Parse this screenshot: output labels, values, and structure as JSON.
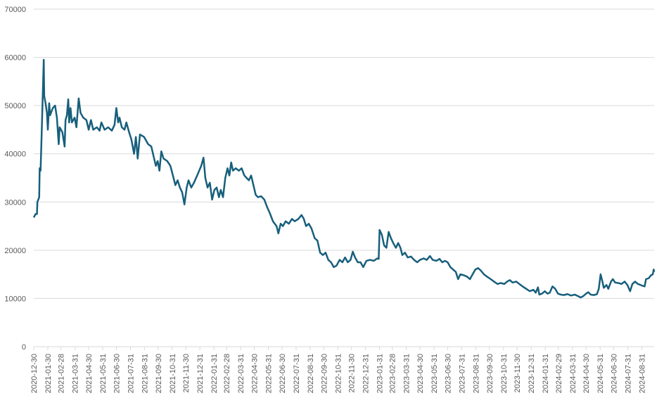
{
  "chart_data": {
    "type": "line",
    "color": "#175f7c",
    "grid": true,
    "x": [
      "2020-12-30",
      "2021-01-03",
      "2021-01-06",
      "2021-01-07",
      "2021-01-11",
      "2021-01-12",
      "2021-01-14",
      "2021-01-17",
      "2021-01-21",
      "2021-01-22",
      "2021-01-25",
      "2021-01-28",
      "2021-01-30",
      "2021-02-02",
      "2021-02-04",
      "2021-02-10",
      "2021-02-15",
      "2021-02-19",
      "2021-02-23",
      "2021-02-25",
      "2021-03-03",
      "2021-03-08",
      "2021-03-10",
      "2021-03-13",
      "2021-03-16",
      "2021-03-18",
      "2021-03-21",
      "2021-03-24",
      "2021-03-30",
      "2021-04-03",
      "2021-04-08",
      "2021-04-12",
      "2021-04-18",
      "2021-04-25",
      "2021-04-30",
      "2021-05-05",
      "2021-05-10",
      "2021-05-18",
      "2021-05-24",
      "2021-05-28",
      "2021-06-04",
      "2021-06-12",
      "2021-06-20",
      "2021-06-26",
      "2021-06-30",
      "2021-07-04",
      "2021-07-07",
      "2021-07-12",
      "2021-07-18",
      "2021-07-22",
      "2021-07-28",
      "2021-08-02",
      "2021-08-08",
      "2021-08-12",
      "2021-08-16",
      "2021-08-21",
      "2021-08-30",
      "2021-09-08",
      "2021-09-15",
      "2021-09-20",
      "2021-09-25",
      "2021-09-29",
      "2021-10-03",
      "2021-10-07",
      "2021-10-12",
      "2021-10-20",
      "2021-10-27",
      "2021-11-03",
      "2021-11-07",
      "2021-11-12",
      "2021-11-17",
      "2021-11-22",
      "2021-11-27",
      "2021-12-02",
      "2021-12-06",
      "2021-12-12",
      "2021-12-18",
      "2021-12-25",
      "2022-01-03",
      "2022-01-08",
      "2022-01-12",
      "2022-01-17",
      "2022-01-22",
      "2022-01-27",
      "2022-02-01",
      "2022-02-06",
      "2022-02-11",
      "2022-02-15",
      "2022-02-20",
      "2022-02-25",
      "2022-03-02",
      "2022-03-06",
      "2022-03-10",
      "2022-03-14",
      "2022-03-20",
      "2022-03-27",
      "2022-04-02",
      "2022-04-08",
      "2022-04-13",
      "2022-04-18",
      "2022-04-23",
      "2022-04-28",
      "2022-05-03",
      "2022-05-08",
      "2022-05-15",
      "2022-05-22",
      "2022-05-28",
      "2022-06-04",
      "2022-06-10",
      "2022-06-18",
      "2022-06-22",
      "2022-06-27",
      "2022-07-02",
      "2022-07-08",
      "2022-07-15",
      "2022-07-22",
      "2022-07-28",
      "2022-08-05",
      "2022-08-12",
      "2022-08-17",
      "2022-08-22",
      "2022-08-28",
      "2022-09-03",
      "2022-09-10",
      "2022-09-16",
      "2022-09-22",
      "2022-09-28",
      "2022-10-04",
      "2022-10-10",
      "2022-10-16",
      "2022-10-22",
      "2022-10-28",
      "2022-11-04",
      "2022-11-10",
      "2022-11-16",
      "2022-11-22",
      "2022-11-28",
      "2022-12-03",
      "2022-12-08",
      "2022-12-14",
      "2022-12-20",
      "2022-12-26",
      "2023-01-02",
      "2023-01-10",
      "2023-01-18",
      "2023-01-26",
      "2023-01-29",
      "2023-01-31",
      "2023-02-05",
      "2023-02-10",
      "2023-02-15",
      "2023-02-20",
      "2023-02-25",
      "2023-03-02",
      "2023-03-08",
      "2023-03-13",
      "2023-03-18",
      "2023-03-22",
      "2023-03-28",
      "2023-04-03",
      "2023-04-10",
      "2023-04-17",
      "2023-04-24",
      "2023-04-30",
      "2023-05-08",
      "2023-05-15",
      "2023-05-22",
      "2023-05-28",
      "2023-06-05",
      "2023-06-12",
      "2023-06-18",
      "2023-06-24",
      "2023-06-30",
      "2023-07-06",
      "2023-07-12",
      "2023-07-18",
      "2023-07-23",
      "2023-07-28",
      "2023-08-05",
      "2023-08-12",
      "2023-08-18",
      "2023-08-24",
      "2023-08-30",
      "2023-09-05",
      "2023-09-11",
      "2023-09-18",
      "2023-09-25",
      "2023-10-03",
      "2023-10-10",
      "2023-10-18",
      "2023-10-25",
      "2023-11-02",
      "2023-11-08",
      "2023-11-14",
      "2023-11-20",
      "2023-11-28",
      "2023-12-05",
      "2023-12-12",
      "2023-12-20",
      "2023-12-28",
      "2024-01-05",
      "2024-01-10",
      "2024-01-15",
      "2024-01-18",
      "2024-01-24",
      "2024-01-30",
      "2024-02-05",
      "2024-02-10",
      "2024-02-16",
      "2024-02-22",
      "2024-02-28",
      "2024-03-05",
      "2024-03-12",
      "2024-03-20",
      "2024-03-28",
      "2024-04-05",
      "2024-04-12",
      "2024-04-18",
      "2024-04-24",
      "2024-04-30",
      "2024-05-05",
      "2024-05-10",
      "2024-05-17",
      "2024-05-24",
      "2024-05-28",
      "2024-06-01",
      "2024-06-05",
      "2024-06-08",
      "2024-06-14",
      "2024-06-18",
      "2024-06-24",
      "2024-06-28",
      "2024-07-03",
      "2024-07-10",
      "2024-07-17",
      "2024-07-24",
      "2024-07-30",
      "2024-08-05",
      "2024-08-10",
      "2024-08-16",
      "2024-08-22",
      "2024-08-28",
      "2024-09-02",
      "2024-09-06",
      "2024-09-09",
      "2024-09-15",
      "2024-09-20",
      "2024-09-24",
      "2024-09-26",
      "2024-09-27"
    ],
    "values": [
      26800,
      27500,
      27500,
      30000,
      31000,
      37000,
      36500,
      46000,
      59500,
      52000,
      50500,
      48500,
      45000,
      50500,
      48000,
      49500,
      50000,
      47500,
      42000,
      45500,
      44500,
      41500,
      47000,
      48000,
      51300,
      46500,
      49500,
      46500,
      47500,
      45500,
      51500,
      48500,
      47500,
      47000,
      45000,
      47000,
      45000,
      45500,
      44800,
      46500,
      45000,
      45500,
      44800,
      46000,
      49500,
      46500,
      47500,
      45500,
      45000,
      46500,
      44500,
      43000,
      40000,
      43500,
      39000,
      44000,
      43500,
      42000,
      41500,
      39500,
      37500,
      38500,
      36500,
      40500,
      39000,
      38500,
      37500,
      35000,
      33500,
      34500,
      33000,
      32000,
      29500,
      33000,
      34500,
      33000,
      34000,
      35500,
      37500,
      39200,
      35000,
      33000,
      34000,
      30500,
      32500,
      33000,
      31000,
      32500,
      31000,
      35000,
      37000,
      35500,
      38200,
      36500,
      37000,
      36500,
      37000,
      35500,
      35000,
      34500,
      35500,
      33500,
      31500,
      31000,
      31200,
      30500,
      29000,
      27500,
      26000,
      25000,
      23500,
      25500,
      25000,
      26000,
      25500,
      26500,
      26000,
      26500,
      27300,
      26500,
      25000,
      25500,
      24500,
      22500,
      22000,
      19500,
      19000,
      19500,
      18000,
      17500,
      16500,
      16800,
      18000,
      17500,
      18500,
      17500,
      18000,
      19700,
      18500,
      17500,
      17500,
      16500,
      17800,
      18000,
      17800,
      18300,
      18200,
      24200,
      23200,
      21000,
      20500,
      23800,
      22500,
      21500,
      20500,
      21500,
      20500,
      19000,
      19500,
      18500,
      18700,
      18000,
      17500,
      18000,
      18300,
      18000,
      18800,
      18000,
      17800,
      18200,
      17500,
      17800,
      17500,
      16500,
      16000,
      15500,
      14000,
      15000,
      14800,
      14500,
      14000,
      15000,
      16000,
      16300,
      15800,
      15000,
      14500,
      14000,
      13500,
      13000,
      13200,
      13000,
      13500,
      13800,
      13300,
      13500,
      13000,
      12500,
      12000,
      11500,
      11800,
      11200,
      12300,
      10800,
      11000,
      11500,
      11000,
      11200,
      12500,
      12000,
      11000,
      10800,
      10700,
      10900,
      10600,
      10800,
      10500,
      10200,
      10500,
      11000,
      11300,
      10800,
      10700,
      10900,
      12000,
      15000,
      13500,
      12200,
      12800,
      12000,
      13500,
      14000,
      13300,
      13200,
      13000,
      13500,
      12800,
      11500,
      13000,
      13500,
      13000,
      12800,
      12600,
      12500,
      14000,
      14200,
      14800,
      15000,
      16000,
      15500
    ],
    "xlim": [
      "2020-12-30",
      "2024-09-27"
    ],
    "xticks": [
      "2020-12-30",
      "2021-01-30",
      "2021-02-28",
      "2021-03-31",
      "2021-04-30",
      "2021-05-31",
      "2021-06-30",
      "2021-07-31",
      "2021-08-31",
      "2021-09-30",
      "2021-10-31",
      "2021-11-30",
      "2021-12-31",
      "2022-01-31",
      "2022-02-28",
      "2022-03-31",
      "2022-04-30",
      "2022-05-31",
      "2022-06-30",
      "2022-07-31",
      "2022-08-31",
      "2022-09-30",
      "2022-10-31",
      "2022-11-30",
      "2022-12-31",
      "2023-01-31",
      "2023-02-28",
      "2023-03-31",
      "2023-04-30",
      "2023-05-31",
      "2023-06-30",
      "2023-07-31",
      "2023-08-31",
      "2023-09-30",
      "2023-10-31",
      "2023-11-30",
      "2023-12-31",
      "2024-01-31",
      "2024-02-29",
      "2024-03-31",
      "2024-04-30",
      "2024-05-31",
      "2024-06-30",
      "2024-07-31",
      "2024-08-31"
    ],
    "ylim": [
      0,
      70000
    ],
    "yticks": [
      0,
      10000,
      20000,
      30000,
      40000,
      50000,
      60000,
      70000
    ]
  }
}
